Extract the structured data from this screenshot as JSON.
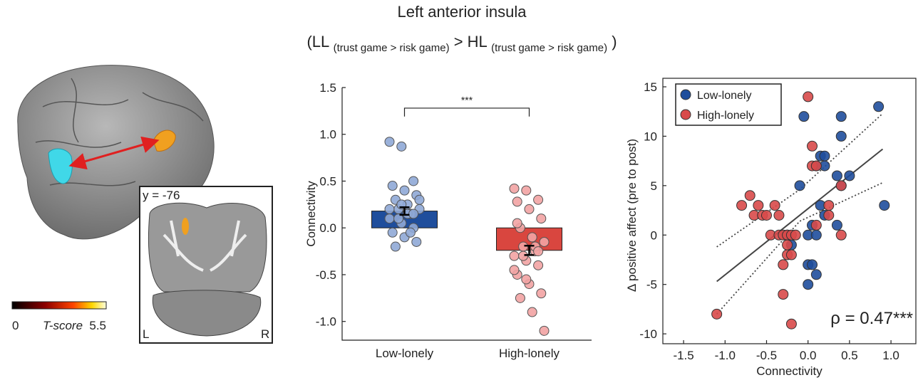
{
  "title": "Left anterior insula",
  "subtitle": [
    "(LL",
    "(trust game > risk game)",
    "> HL",
    "(trust game > risk game)",
    ")"
  ],
  "brain_panel": {
    "slice_label": "y = -76",
    "left_label": "L",
    "right_label": "R",
    "colorbar": {
      "ticks": [
        0,
        5.5
      ],
      "label": "T-score"
    }
  },
  "chart_data": [
    {
      "type": "bar",
      "categories": [
        "Low-lonely",
        "High-lonely"
      ],
      "values": [
        0.18,
        -0.24
      ],
      "errors": [
        0.04,
        0.05
      ],
      "colors": [
        "#1f4e9c",
        "#d9463f"
      ],
      "point_colors": [
        "#8fa9d6",
        "#f2a3a3"
      ],
      "points": [
        [
          0.92,
          0.87,
          0.5,
          0.45,
          0.4,
          0.35,
          0.3,
          0.25,
          0.2,
          0.2,
          0.15,
          0.1,
          0.05,
          0.0,
          -0.05,
          -0.1,
          -0.15,
          -0.2,
          0.15,
          0.3,
          0.1,
          -0.05,
          0.2,
          0.25,
          0.15
        ],
        [
          0.42,
          0.4,
          0.3,
          0.28,
          0.2,
          0.1,
          0.0,
          -0.1,
          -0.15,
          -0.2,
          -0.25,
          -0.3,
          -0.35,
          -0.4,
          -0.5,
          -0.6,
          -0.7,
          -0.75,
          -0.9,
          -1.1,
          -0.3,
          -0.2,
          -0.45,
          -0.55,
          -0.25,
          0.05
        ]
      ],
      "ylabel": "Connectivity",
      "significance": "***",
      "ylim": [
        -1.2,
        1.5
      ],
      "yticks": [
        {
          "value": -1,
          "label": "-1.0"
        },
        {
          "value": -0.5,
          "label": "-0.5"
        },
        {
          "value": 0,
          "label": "0.0"
        },
        {
          "value": 0.5,
          "label": "0.5"
        },
        {
          "value": 1,
          "label": "1.0"
        },
        {
          "value": 1.5,
          "label": "1.5"
        }
      ]
    },
    {
      "type": "scatter",
      "xlabel": "Connectivity",
      "ylabel": "Δ positive affect (pre to post)",
      "legend": "upper left",
      "series": [
        {
          "name": "Low-lonely",
          "color": "#1f4e9c",
          "x": [
            0.85,
            0.92,
            -0.05,
            0.4,
            0.4,
            0.15,
            0.2,
            0.2,
            0.1,
            0.5,
            0.35,
            0.4,
            -0.1,
            0.15,
            0.2,
            0.35,
            0.05,
            0.0,
            0.1,
            -0.2,
            0.0,
            0.05,
            0.1,
            0.0,
            -0.25
          ],
          "y": [
            13,
            3,
            12,
            12,
            10,
            8,
            8,
            7,
            7,
            6,
            6,
            5,
            5,
            3,
            2,
            1,
            1,
            0,
            0,
            -1,
            -3,
            -3,
            -4,
            -5,
            0
          ]
        },
        {
          "name": "High-lonely",
          "color": "#d84a4a",
          "x": [
            0.0,
            0.05,
            0.05,
            0.1,
            0.4,
            0.25,
            0.25,
            0.1,
            0.4,
            -0.7,
            -0.8,
            -0.6,
            -0.65,
            -0.55,
            -0.5,
            -0.35,
            -0.4,
            -0.45,
            -0.35,
            -0.3,
            -0.25,
            -0.2,
            -0.15,
            -0.25,
            -0.2,
            -0.3,
            -0.3,
            -1.1,
            -0.2,
            -0.25
          ],
          "y": [
            14,
            9,
            7,
            7,
            5,
            3,
            2,
            1,
            0,
            4,
            3,
            3,
            2,
            2,
            2,
            2,
            3,
            0,
            0,
            0,
            0,
            0,
            0,
            -2,
            -2,
            -3,
            -6,
            -8,
            -9,
            -1
          ]
        }
      ],
      "fit": {
        "x": [
          -1.1,
          0.9
        ],
        "y": [
          -4.7,
          8.7
        ]
      },
      "ci_lower": {
        "x": [
          -1.1,
          -0.1,
          0.9
        ],
        "y": [
          -8,
          1.4,
          5.3
        ]
      },
      "ci_upper": {
        "x": [
          -1.1,
          -0.1,
          0.9
        ],
        "y": [
          -1.2,
          4.6,
          12.3
        ]
      },
      "annotation": "ρ = 0.47***",
      "xlim": [
        -1.75,
        1.3
      ],
      "ylim": [
        -11,
        15
      ],
      "xticks": [
        {
          "value": -1.5,
          "label": "-1.5"
        },
        {
          "value": -1,
          "label": "-1.0"
        },
        {
          "value": -0.5,
          "label": "-0.5"
        },
        {
          "value": 0,
          "label": "0.0"
        },
        {
          "value": 0.5,
          "label": "0.5"
        },
        {
          "value": 1,
          "label": "1.0"
        }
      ],
      "yticks": [
        -10,
        -5,
        0,
        5,
        10,
        15
      ]
    }
  ]
}
